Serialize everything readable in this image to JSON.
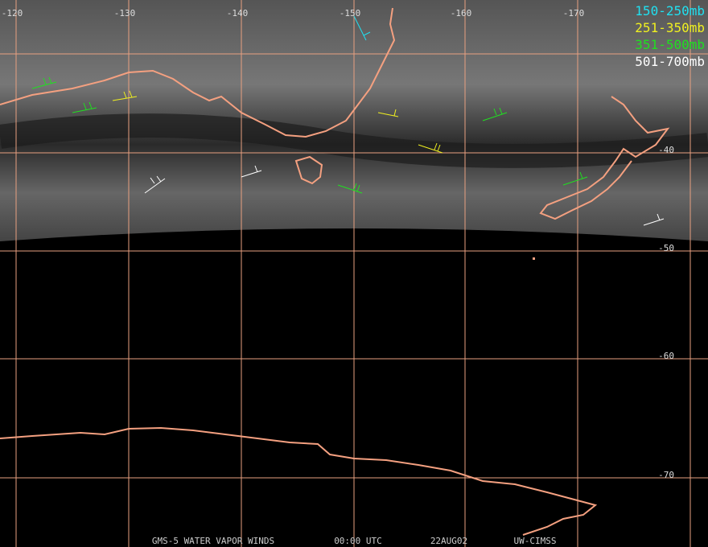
{
  "map": {
    "lon_labels": [
      "-120",
      "-130",
      "-140",
      "-150",
      "-160",
      "-170"
    ],
    "lat_labels": [
      "-40",
      "-50",
      "-60",
      "-70"
    ],
    "legend": [
      {
        "label": "150-250mb",
        "color": "#20e0f0"
      },
      {
        "label": "251-350mb",
        "color": "#f0f020"
      },
      {
        "label": "351-500mb",
        "color": "#20e020"
      },
      {
        "label": "501-700mb",
        "color": "#ffffff"
      }
    ],
    "footer": [
      "GMS-5 WATER VAPOR WINDS",
      "00:00 UTC",
      "22AUG02",
      "UW-CIMSS"
    ]
  }
}
